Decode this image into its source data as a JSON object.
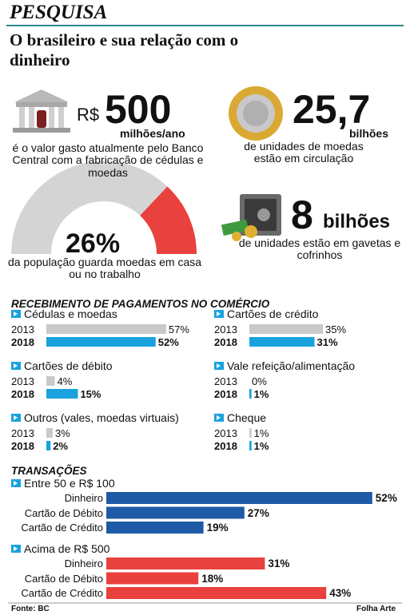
{
  "header": {
    "section": "PESQUISA",
    "title": "O brasileiro e sua relação com o dinheiro"
  },
  "stats": [
    {
      "prefix": "R$",
      "number": "500",
      "unit": "milhões/ano",
      "text": "é o valor gasto atualmente pelo Banco Central com a fabricação de cédulas e moedas"
    },
    {
      "number": "25,7",
      "unit": "bilhões",
      "text": "de unidades de moedas estão em circulação"
    },
    {
      "number": "8",
      "unit": "bilhões",
      "text": "de unidades estão em gavetas e cofrinhos"
    }
  ],
  "gauge": {
    "value": 26,
    "label": "26%",
    "text": "da população guarda moedas em casa ou no trabalho",
    "color": "#e8413e",
    "rest_color": "#d4d4d4"
  },
  "payments": {
    "title": "RECEBIMENTO DE PAGAMENTOS NO COMÉRCIO",
    "years": [
      "2013",
      "2018"
    ],
    "colors": [
      "#c9c9c9",
      "#19a2de"
    ],
    "groups": [
      {
        "name": "Cédulas e moedas",
        "values": [
          57,
          52
        ],
        "value_labels": [
          "57%",
          "52%"
        ]
      },
      {
        "name": "Cartões de crédito",
        "values": [
          35,
          31
        ],
        "value_labels": [
          "35%",
          "31%"
        ]
      },
      {
        "name": "Cartões de débito",
        "values": [
          4,
          15
        ],
        "value_labels": [
          "4%",
          "15%"
        ]
      },
      {
        "name": "Vale refeição/alimentação",
        "values": [
          0,
          1
        ],
        "value_labels": [
          "0%",
          "1%"
        ]
      },
      {
        "name": "Outros (vales, moedas virtuais)",
        "values": [
          3,
          2
        ],
        "value_labels": [
          "3%",
          "2%"
        ]
      },
      {
        "name": "Cheque",
        "values": [
          1,
          1
        ],
        "value_labels": [
          "1%",
          "1%"
        ]
      }
    ]
  },
  "transactions": {
    "title": "TRANSAÇÕES",
    "groups": [
      {
        "name": "Entre 50 e R$ 100",
        "color": "#1f5aa6",
        "categories": [
          "Dinheiro",
          "Cartão de Débito",
          "Cartão de Crédito"
        ],
        "values": [
          52,
          27,
          19
        ],
        "value_labels": [
          "52%",
          "27%",
          "19%"
        ]
      },
      {
        "name": "Acima de R$ 500",
        "color": "#e8413e",
        "categories": [
          "Dinheiro",
          "Cartão de Débito",
          "Cartão de Crédito"
        ],
        "values": [
          31,
          18,
          43
        ],
        "value_labels": [
          "31%",
          "18%",
          "43%"
        ]
      }
    ]
  },
  "footer": {
    "source": "Fonte: BC",
    "credit": "Folha Arte"
  }
}
